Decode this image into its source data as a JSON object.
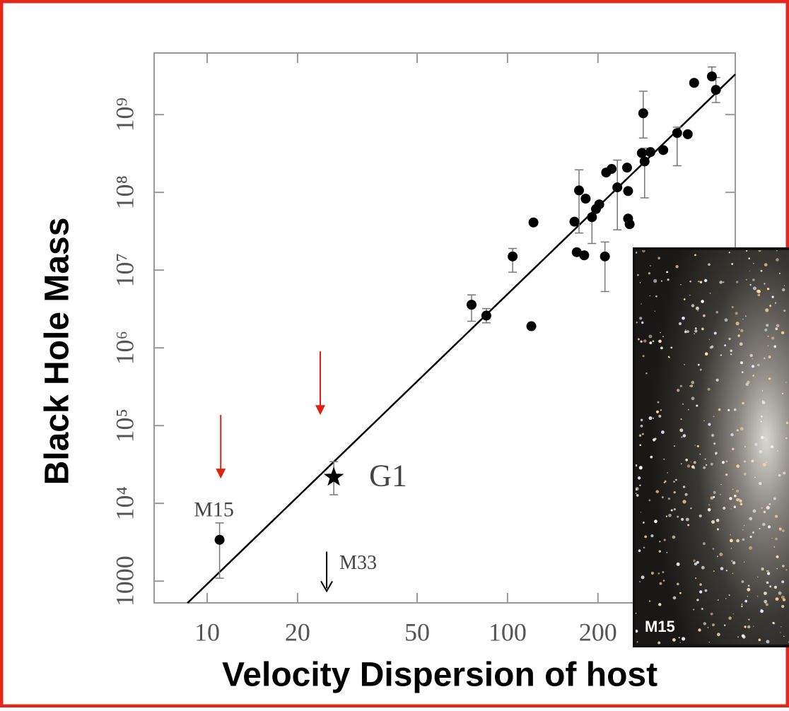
{
  "chart_data": {
    "type": "scatter",
    "xlabel": "Velocity Dispersion of host",
    "ylabel": "Black Hole Mass",
    "xscale": "log",
    "yscale": "log",
    "xlim": [
      6.66,
      573
    ],
    "ylim": [
      525,
      6200000000
    ],
    "xticks": [
      10,
      20,
      50,
      100,
      200
    ],
    "yticks": [
      1000,
      {
        "value": 10000,
        "label": "10⁴"
      },
      {
        "value": 100000,
        "label": "10⁵"
      },
      {
        "value": 1000000,
        "label": "10⁶"
      },
      {
        "value": 10000000,
        "label": "10⁷"
      },
      {
        "value": 100000000,
        "label": "10⁸"
      },
      {
        "value": 1000000000,
        "label": "10⁹"
      }
    ],
    "series": [
      {
        "color": "#000000",
        "x": [
          11.0,
          75.9,
          85,
          104,
          120,
          122,
          167,
          170,
          173,
          180,
          182,
          191,
          197,
          202,
          211,
          213,
          222,
          232,
          250,
          252,
          252,
          255,
          280,
          283,
          286,
          299,
          330,
          367,
          398,
          418,
          479,
          494
        ],
        "y": [
          3400,
          3590000,
          2600000,
          15000000,
          1900000,
          41000000,
          42000000,
          17000000,
          106000000,
          15500000,
          83000000,
          48000000,
          61000000,
          70000000,
          15000000,
          180000000,
          200000000,
          116000000,
          208000000,
          104000000,
          46000000,
          39000000,
          320000000,
          1040000000,
          250000000,
          330000000,
          350000000,
          580000000,
          560000000,
          2560000000,
          3100000000,
          2080000000
        ],
        "ylow": [
          1090,
          2200000,
          2100000,
          9400000,
          null,
          null,
          null,
          null,
          30000000,
          null,
          null,
          22000000,
          null,
          null,
          5300000,
          null,
          null,
          33000000,
          null,
          null,
          null,
          null,
          null,
          500000000,
          85000000,
          null,
          null,
          220000000,
          null,
          null,
          null,
          1430000000
        ],
        "yhigh": [
          5600,
          4800000,
          3200000,
          19000000,
          null,
          null,
          null,
          null,
          195000000,
          null,
          null,
          null,
          null,
          null,
          23000000,
          null,
          null,
          260000000,
          null,
          null,
          null,
          null,
          null,
          2000000000,
          370000000,
          null,
          null,
          690000000,
          null,
          null,
          4100000000,
          3000000000
        ]
      }
    ],
    "fit_line": {
      "color": "#000000",
      "x": [
        8.6,
        573
      ],
      "y": [
        522,
        3300000000
      ]
    },
    "highlight": {
      "label": "G1",
      "x": 26.4,
      "y": 21700,
      "ylow": 12900,
      "yhigh": 34400
    },
    "annotations": [
      "M15"
    ],
    "upper_limits": [
      {
        "label": "M33",
        "x": 25,
        "y": 2400,
        "color": "#000000"
      },
      {
        "x": 11.1,
        "y": 137000,
        "color": "#e02010"
      },
      {
        "x": 23.8,
        "y": 900000,
        "color": "#e02010"
      }
    ]
  },
  "inset": {
    "label": "M15"
  }
}
